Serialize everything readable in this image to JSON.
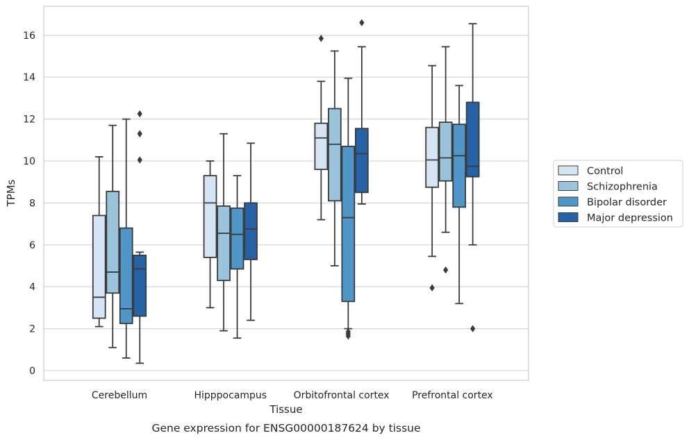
{
  "caption": "Gene expression for ENSG00000187624 by tissue",
  "chart_data": {
    "type": "box",
    "xlabel": "Tissue",
    "ylabel": "TPMs",
    "ylim": [
      -0.4,
      17.4
    ],
    "yticks": [
      0,
      2,
      4,
      6,
      8,
      10,
      12,
      14,
      16
    ],
    "ytick_labels": [
      "0",
      "2",
      "4",
      "6",
      "8",
      "10",
      "12",
      "14",
      "16"
    ],
    "grid": "horizontal",
    "legend_placement": "outside right",
    "categories": [
      "Cerebellum",
      "Hipppocampus",
      "Orbitofrontal cortex",
      "Prefrontal cortex"
    ],
    "series": [
      {
        "name": "Control",
        "color": "#d6e5f3",
        "boxes": [
          {
            "whislo": 2.1,
            "q1": 2.5,
            "med": 3.5,
            "q3": 7.4,
            "whishi": 10.2,
            "fliers": []
          },
          {
            "whislo": 3.0,
            "q1": 5.4,
            "med": 8.0,
            "q3": 9.3,
            "whishi": 10.0,
            "fliers": []
          },
          {
            "whislo": 7.2,
            "q1": 9.6,
            "med": 11.1,
            "q3": 11.8,
            "whishi": 13.8,
            "fliers": [
              15.85
            ]
          },
          {
            "whislo": 5.45,
            "q1": 8.75,
            "med": 10.05,
            "q3": 11.6,
            "whishi": 14.55,
            "fliers": [
              3.95
            ]
          }
        ]
      },
      {
        "name": "Schizophrenia",
        "color": "#9cc3dc",
        "boxes": [
          {
            "whislo": 1.1,
            "q1": 3.7,
            "med": 4.7,
            "q3": 8.55,
            "whishi": 11.7,
            "fliers": []
          },
          {
            "whislo": 1.9,
            "q1": 4.3,
            "med": 6.55,
            "q3": 7.85,
            "whishi": 11.3,
            "fliers": []
          },
          {
            "whislo": 5.0,
            "q1": 8.1,
            "med": 10.8,
            "q3": 12.5,
            "whishi": 15.25,
            "fliers": []
          },
          {
            "whislo": 6.6,
            "q1": 9.05,
            "med": 10.15,
            "q3": 11.85,
            "whishi": 15.45,
            "fliers": [
              4.8
            ]
          }
        ]
      },
      {
        "name": "Bipolar disorder",
        "color": "#5096c8",
        "boxes": [
          {
            "whislo": 0.6,
            "q1": 2.25,
            "med": 2.95,
            "q3": 6.8,
            "whishi": 12.0,
            "fliers": []
          },
          {
            "whislo": 1.55,
            "q1": 4.85,
            "med": 6.5,
            "q3": 7.75,
            "whishi": 9.3,
            "fliers": []
          },
          {
            "whislo": 2.0,
            "q1": 3.3,
            "med": 7.3,
            "q3": 10.7,
            "whishi": 13.95,
            "fliers": [
              1.85,
              1.75,
              1.65
            ]
          },
          {
            "whislo": 3.2,
            "q1": 7.8,
            "med": 10.25,
            "q3": 11.75,
            "whishi": 13.6,
            "fliers": []
          }
        ]
      },
      {
        "name": "Major depression",
        "color": "#2663a6",
        "boxes": [
          {
            "whislo": 0.35,
            "q1": 2.6,
            "med": 4.85,
            "q3": 5.5,
            "whishi": 5.65,
            "fliers": [
              10.05,
              11.3,
              12.25
            ]
          },
          {
            "whislo": 2.4,
            "q1": 5.3,
            "med": 6.75,
            "q3": 8.0,
            "whishi": 10.85,
            "fliers": []
          },
          {
            "whislo": 7.95,
            "q1": 8.5,
            "med": 10.35,
            "q3": 11.55,
            "whishi": 15.45,
            "fliers": [
              16.6
            ]
          },
          {
            "whislo": 6.0,
            "q1": 9.25,
            "med": 9.75,
            "q3": 12.8,
            "whishi": 16.55,
            "fliers": [
              2.0
            ]
          }
        ]
      }
    ]
  }
}
